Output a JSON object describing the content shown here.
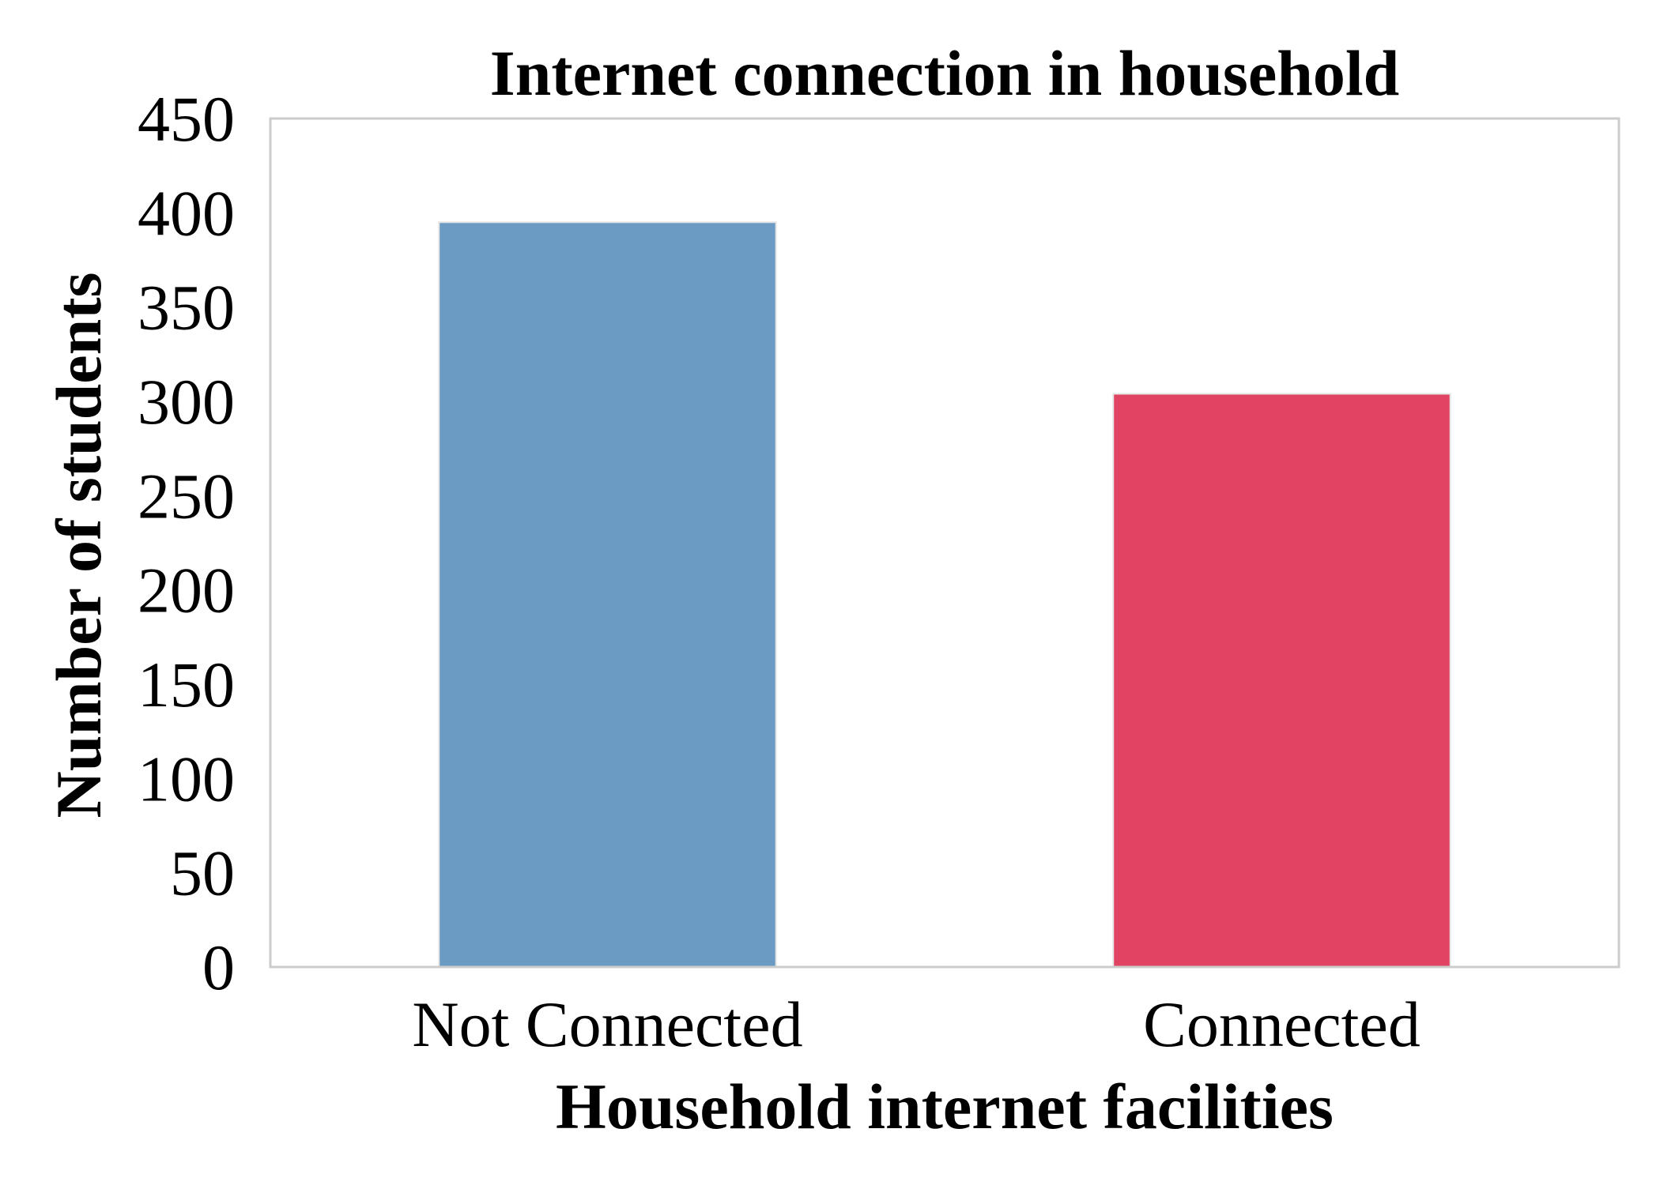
{
  "chart_data": {
    "type": "bar",
    "title": "Internet connection in household",
    "xlabel": "Household internet facilities",
    "ylabel": "Number of students",
    "categories": [
      "Not Connected",
      "Connected"
    ],
    "values": [
      395,
      304
    ],
    "colors": [
      "#6b9bc3",
      "#e04462"
    ],
    "ylim": [
      0,
      450
    ],
    "yticks": [
      0,
      50,
      100,
      150,
      200,
      250,
      300,
      350,
      400,
      450
    ],
    "grid": false,
    "legend": "none"
  }
}
